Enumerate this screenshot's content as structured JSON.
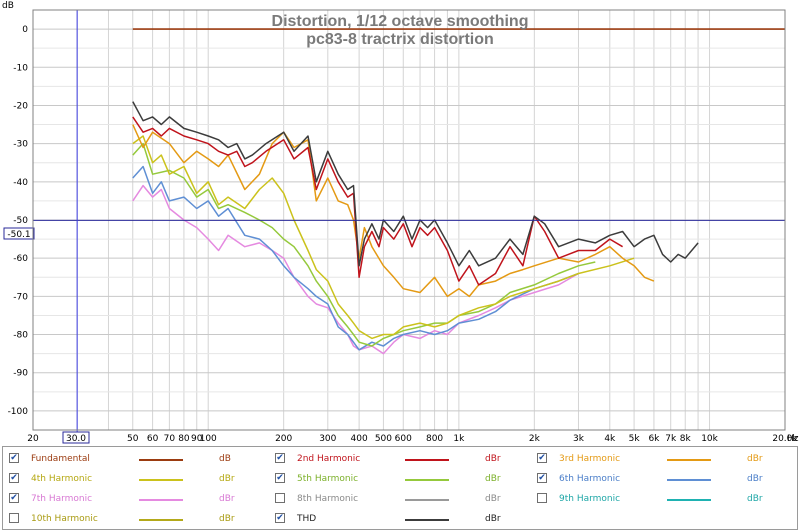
{
  "y_axis_unit": "dB",
  "x_axis_unit": "Hz",
  "cursor": {
    "y_readout": "-50.1",
    "x_readout": "30.0"
  },
  "x_tick_labels": [
    {
      "f": 20,
      "label": "20"
    },
    {
      "f": 50,
      "label": "50"
    },
    {
      "f": 60,
      "label": "60"
    },
    {
      "f": 70,
      "label": "70"
    },
    {
      "f": 80,
      "label": "80"
    },
    {
      "f": 90,
      "label": "90"
    },
    {
      "f": 100,
      "label": "100"
    },
    {
      "f": 200,
      "label": "200"
    },
    {
      "f": 300,
      "label": "300"
    },
    {
      "f": 400,
      "label": "400"
    },
    {
      "f": 500,
      "label": "500"
    },
    {
      "f": 600,
      "label": "600"
    },
    {
      "f": 800,
      "label": "800"
    },
    {
      "f": 1000,
      "label": "1k"
    },
    {
      "f": 2000,
      "label": "2k"
    },
    {
      "f": 3000,
      "label": "3k"
    },
    {
      "f": 4000,
      "label": "4k"
    },
    {
      "f": 5000,
      "label": "5k"
    },
    {
      "f": 6000,
      "label": "6k"
    },
    {
      "f": 7000,
      "label": "7k"
    },
    {
      "f": 8000,
      "label": "8k"
    },
    {
      "f": 10000,
      "label": "10k"
    },
    {
      "f": 20000,
      "label": "20.0k"
    }
  ],
  "y_tick_labels": [
    "0",
    "-10",
    "-20",
    "-30",
    "-40",
    "-50",
    "-60",
    "-70",
    "-80",
    "-90",
    "-100"
  ],
  "legend": [
    {
      "key": "fund",
      "name": "Fundamental",
      "unit": "dB",
      "checked": true,
      "color": "#9b3b10",
      "text_color": "#9b3b10"
    },
    {
      "key": "h2",
      "name": "2nd Harmonic",
      "unit": "dBr",
      "checked": true,
      "color": "#c0141c",
      "text_color": "#c0141c"
    },
    {
      "key": "h3",
      "name": "3rd Harmonic",
      "unit": "dBr",
      "checked": true,
      "color": "#e49a14",
      "text_color": "#e49a14"
    },
    {
      "key": "h4",
      "name": "4th Harmonic",
      "unit": "dBr",
      "checked": true,
      "color": "#cbc21c",
      "text_color": "#b5a812"
    },
    {
      "key": "h5",
      "name": "5th Harmonic",
      "unit": "dBr",
      "checked": true,
      "color": "#95c93c",
      "text_color": "#7cb02a"
    },
    {
      "key": "h6",
      "name": "6th Harmonic",
      "unit": "dBr",
      "checked": true,
      "color": "#5f8fd4",
      "text_color": "#4a7ec9"
    },
    {
      "key": "h7",
      "name": "7th Harmonic",
      "unit": "dBr",
      "checked": true,
      "color": "#e58ae0",
      "text_color": "#d879d4"
    },
    {
      "key": "h8",
      "name": "8th Harmonic",
      "unit": "dBr",
      "checked": false,
      "color": "#9a9a9a",
      "text_color": "#8a8a8a"
    },
    {
      "key": "h9",
      "name": "9th Harmonic",
      "unit": "dBr",
      "checked": false,
      "color": "#1fb2b2",
      "text_color": "#1fa7a7"
    },
    {
      "key": "h10",
      "name": "10th Harmonic",
      "unit": "dBr",
      "checked": false,
      "color": "#b4a91a",
      "text_color": "#a99b12"
    },
    {
      "key": "thd",
      "name": "THD",
      "unit": "dBr",
      "checked": true,
      "color": "#3c3c3c",
      "text_color": "#222222"
    }
  ],
  "chart_data": {
    "type": "line",
    "title": "Distortion, 1/12 octave smoothing",
    "subtitle": "pc83-8 tractrix distortion",
    "xlabel": "",
    "ylabel": "",
    "x_scale": "log",
    "xlim": [
      20,
      20000
    ],
    "ylim": [
      -105,
      5
    ],
    "grid": true,
    "legend_position": "bottom",
    "series": [
      {
        "name": "Fundamental",
        "color": "#9b3b10",
        "x": [
          50,
          20000
        ],
        "y": [
          0,
          0
        ]
      },
      {
        "name": "THD",
        "color": "#3c3c3c",
        "x": [
          50,
          55,
          60,
          65,
          70,
          80,
          90,
          100,
          110,
          120,
          130,
          140,
          150,
          170,
          200,
          220,
          250,
          270,
          300,
          330,
          360,
          380,
          400,
          420,
          450,
          480,
          500,
          550,
          600,
          650,
          700,
          750,
          800,
          900,
          1000,
          1100,
          1200,
          1400,
          1600,
          1800,
          2000,
          2200,
          2500,
          3000,
          3500,
          4000,
          4500,
          5000,
          5500,
          6000,
          6500,
          7000,
          7500,
          8000,
          9000
        ],
        "y": [
          -19,
          -24,
          -23,
          -25,
          -23,
          -26,
          -27,
          -28,
          -29,
          -31,
          -30,
          -34,
          -33,
          -30,
          -27,
          -32,
          -28,
          -40,
          -32,
          -38,
          -42,
          -41,
          -62,
          -55,
          -51,
          -55,
          -50,
          -53,
          -49,
          -55,
          -50,
          -52,
          -50,
          -56,
          -62,
          -58,
          -62,
          -60,
          -55,
          -59,
          -49,
          -51,
          -57,
          -55,
          -56,
          -54,
          -53,
          -57,
          -55,
          -54,
          -59,
          -61,
          -59,
          -60,
          -56
        ]
      },
      {
        "name": "2nd Harmonic",
        "color": "#c0141c",
        "x": [
          50,
          55,
          60,
          65,
          70,
          80,
          90,
          100,
          110,
          120,
          130,
          140,
          150,
          170,
          200,
          220,
          250,
          270,
          300,
          330,
          360,
          380,
          400,
          420,
          450,
          480,
          500,
          550,
          600,
          650,
          700,
          750,
          800,
          900,
          1000,
          1100,
          1200,
          1400,
          1600,
          1800,
          2000,
          2200,
          2500,
          3000,
          3500,
          4000,
          4500
        ],
        "y": [
          -23,
          -27,
          -26,
          -28,
          -26,
          -28,
          -29,
          -30,
          -32,
          -33,
          -32,
          -36,
          -35,
          -32,
          -29,
          -34,
          -31,
          -42,
          -34,
          -40,
          -44,
          -43,
          -65,
          -57,
          -53,
          -57,
          -52,
          -55,
          -51,
          -57,
          -52,
          -54,
          -52,
          -58,
          -66,
          -62,
          -67,
          -64,
          -57,
          -62,
          -49,
          -53,
          -60,
          -58,
          -58,
          -55,
          -57
        ]
      },
      {
        "name": "3rd Harmonic",
        "color": "#e49a14",
        "x": [
          50,
          55,
          60,
          70,
          80,
          90,
          100,
          110,
          120,
          140,
          160,
          180,
          200,
          220,
          250,
          270,
          300,
          330,
          360,
          380,
          400,
          420,
          450,
          500,
          550,
          600,
          700,
          800,
          900,
          1000,
          1100,
          1200,
          1400,
          1600,
          1800,
          2000,
          2500,
          3000,
          3500,
          4000,
          4500,
          5000,
          5500,
          6000
        ],
        "y": [
          -25,
          -31,
          -27,
          -30,
          -35,
          -32,
          -34,
          -36,
          -33,
          -42,
          -38,
          -30,
          -27,
          -31,
          -29,
          -45,
          -39,
          -45,
          -46,
          -50,
          -60,
          -52,
          -57,
          -62,
          -65,
          -68,
          -69,
          -65,
          -70,
          -68,
          -70,
          -67,
          -66,
          -64,
          -63,
          -62,
          -60,
          -61,
          -59,
          -57,
          -60,
          -62,
          -65,
          -66
        ]
      },
      {
        "name": "4th Harmonic",
        "color": "#cbc21c",
        "x": [
          50,
          55,
          60,
          65,
          70,
          80,
          90,
          100,
          110,
          120,
          140,
          160,
          180,
          200,
          220,
          250,
          270,
          300,
          330,
          360,
          380,
          400,
          450,
          500,
          550,
          600,
          700,
          800,
          900,
          1000,
          1200,
          1400,
          1600,
          2000,
          2500,
          3000,
          4000,
          5000
        ],
        "y": [
          -30,
          -28,
          -35,
          -33,
          -38,
          -36,
          -43,
          -40,
          -46,
          -44,
          -47,
          -42,
          -39,
          -43,
          -50,
          -58,
          -63,
          -66,
          -72,
          -75,
          -77,
          -79,
          -81,
          -80,
          -80,
          -78,
          -77,
          -78,
          -77,
          -75,
          -73,
          -72,
          -70,
          -68,
          -66,
          -64,
          -62,
          -60
        ]
      },
      {
        "name": "5th Harmonic",
        "color": "#95c93c",
        "x": [
          50,
          55,
          60,
          70,
          80,
          90,
          100,
          110,
          120,
          140,
          160,
          180,
          200,
          220,
          250,
          270,
          300,
          330,
          360,
          380,
          400,
          450,
          500,
          550,
          600,
          700,
          800,
          900,
          1000,
          1200,
          1400,
          1600,
          2000,
          2500,
          3000,
          3500
        ],
        "y": [
          -33,
          -30,
          -38,
          -37,
          -39,
          -44,
          -42,
          -47,
          -46,
          -48,
          -50,
          -52,
          -55,
          -57,
          -62,
          -66,
          -70,
          -75,
          -78,
          -80,
          -82,
          -83,
          -81,
          -80,
          -79,
          -78,
          -77,
          -77,
          -75,
          -74,
          -72,
          -69,
          -67,
          -64,
          -62,
          -61
        ]
      },
      {
        "name": "6th Harmonic",
        "color": "#5f8fd4",
        "x": [
          50,
          55,
          60,
          65,
          70,
          80,
          90,
          100,
          110,
          120,
          140,
          160,
          180,
          200,
          220,
          250,
          270,
          300,
          330,
          360,
          380,
          400,
          450,
          500,
          550,
          600,
          700,
          800,
          900,
          1000,
          1200,
          1400,
          1600,
          2000,
          2500,
          3000
        ],
        "y": [
          -39,
          -36,
          -43,
          -40,
          -45,
          -44,
          -47,
          -45,
          -49,
          -47,
          -54,
          -55,
          -58,
          -62,
          -65,
          -68,
          -70,
          -72,
          -78,
          -80,
          -82,
          -84,
          -82,
          -83,
          -81,
          -80,
          -79,
          -80,
          -79,
          -77,
          -76,
          -74,
          -71,
          -68,
          -66,
          -64
        ]
      },
      {
        "name": "7th Harmonic",
        "color": "#e58ae0",
        "x": [
          50,
          55,
          60,
          65,
          70,
          80,
          90,
          100,
          110,
          120,
          140,
          160,
          180,
          200,
          220,
          250,
          270,
          300,
          330,
          360,
          380,
          400,
          450,
          500,
          550,
          600,
          700,
          800,
          900,
          1000,
          1200,
          1400,
          1600,
          2000,
          2500,
          3000
        ],
        "y": [
          -45,
          -41,
          -44,
          -42,
          -47,
          -50,
          -52,
          -55,
          -58,
          -54,
          -57,
          -56,
          -58,
          -60,
          -65,
          -70,
          -72,
          -73,
          -77,
          -80,
          -83,
          -84,
          -83,
          -85,
          -82,
          -80,
          -81,
          -79,
          -80,
          -77,
          -75,
          -73,
          -71,
          -69,
          -67,
          -64
        ]
      }
    ]
  }
}
